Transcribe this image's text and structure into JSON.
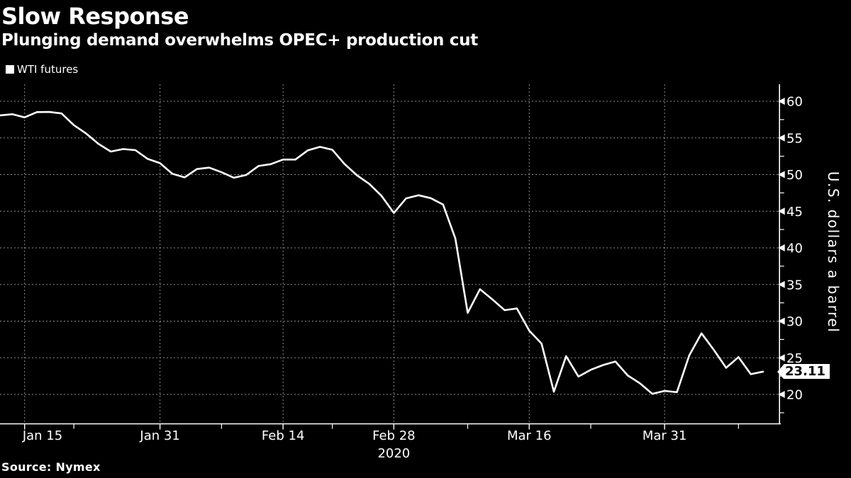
{
  "title": "Slow Response",
  "subtitle": "Plunging demand overwhelms OPEC+ production cut",
  "legend": {
    "label": "WTI futures"
  },
  "source": "Source: Nymex",
  "last_value_label": "23.11",
  "colors": {
    "background": "#000000",
    "text": "#ffffff",
    "line": "#ffffff",
    "grid": "#8c8c8c",
    "axis": "#ffffff",
    "badge_bg": "#ffffff",
    "badge_text": "#000000"
  },
  "y_axis": {
    "unit_label": "U.S. dollars a barrel",
    "major_ticks": [
      60,
      55,
      50,
      45,
      40,
      35,
      30,
      25,
      20
    ],
    "minor_ticks": [
      57.5,
      52.5,
      47.5,
      42.5,
      37.5,
      32.5,
      27.5,
      22.5,
      17.5
    ]
  },
  "x_axis": {
    "major_ticks": [
      "Jan 15",
      "Jan 31",
      "Feb 14",
      "Feb 28",
      "Mar 16",
      "Mar 31"
    ],
    "minor_tick_dates": [
      "Jan 22",
      "Feb 7",
      "Feb 21",
      "Mar 9",
      "Mar 23",
      "Apr 8"
    ],
    "year_label": "2020",
    "year_label_under": "Feb 28"
  },
  "chart_data": {
    "type": "line",
    "title": "Slow Response",
    "subtitle": "Plunging demand overwhelms OPEC+ production cut",
    "ylabel": "U.S. dollars a barrel",
    "xlabel": "2020",
    "ylim": [
      17.5,
      62.3
    ],
    "yticks": [
      20,
      25,
      30,
      35,
      40,
      45,
      50,
      55,
      60
    ],
    "grid": "dashed",
    "legend_position": "top-left",
    "last_value": 23.11,
    "x": [
      "Jan 13",
      "Jan 14",
      "Jan 15",
      "Jan 16",
      "Jan 17",
      "Jan 21",
      "Jan 22",
      "Jan 23",
      "Jan 24",
      "Jan 27",
      "Jan 28",
      "Jan 29",
      "Jan 30",
      "Jan 31",
      "Feb 3",
      "Feb 4",
      "Feb 5",
      "Feb 6",
      "Feb 7",
      "Feb 10",
      "Feb 11",
      "Feb 12",
      "Feb 13",
      "Feb 14",
      "Feb 18",
      "Feb 19",
      "Feb 20",
      "Feb 21",
      "Feb 24",
      "Feb 25",
      "Feb 26",
      "Feb 27",
      "Feb 28",
      "Mar 2",
      "Mar 3",
      "Mar 4",
      "Mar 5",
      "Mar 6",
      "Mar 9",
      "Mar 10",
      "Mar 11",
      "Mar 12",
      "Mar 13",
      "Mar 16",
      "Mar 17",
      "Mar 18",
      "Mar 19",
      "Mar 20",
      "Mar 23",
      "Mar 24",
      "Mar 25",
      "Mar 26",
      "Mar 27",
      "Mar 30",
      "Mar 31",
      "Apr 1",
      "Apr 2",
      "Apr 3",
      "Apr 6",
      "Apr 7",
      "Apr 8",
      "Apr 9",
      "Apr 13"
    ],
    "series": [
      {
        "name": "WTI futures",
        "values": [
          58.08,
          58.23,
          57.81,
          58.52,
          58.54,
          58.34,
          56.74,
          55.59,
          54.19,
          53.14,
          53.48,
          53.33,
          52.14,
          51.56,
          50.11,
          49.61,
          50.75,
          50.95,
          50.32,
          49.57,
          49.94,
          51.17,
          51.42,
          52.05,
          52.05,
          53.29,
          53.78,
          53.38,
          51.43,
          49.9,
          48.73,
          47.09,
          44.76,
          46.75,
          47.18,
          46.78,
          45.9,
          41.28,
          31.13,
          34.36,
          32.98,
          31.5,
          31.73,
          28.7,
          26.95,
          20.37,
          25.22,
          22.43,
          23.36,
          24.01,
          24.49,
          22.6,
          21.51,
          20.09,
          20.48,
          20.31,
          25.32,
          28.34,
          26.08,
          23.63,
          25.09,
          22.76,
          23.11
        ]
      }
    ]
  }
}
